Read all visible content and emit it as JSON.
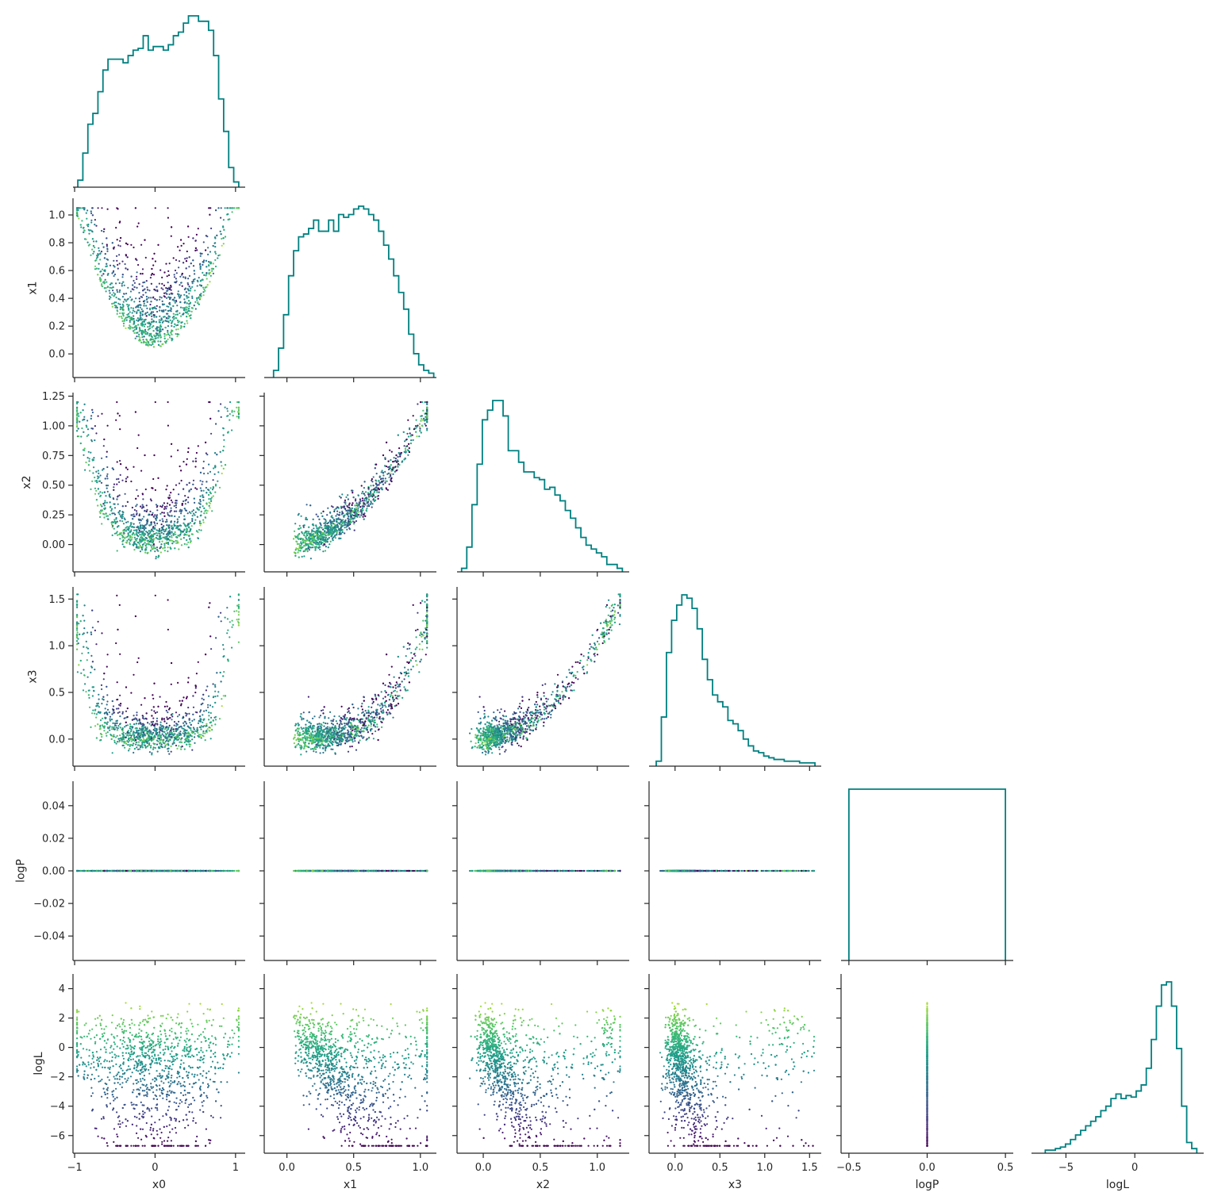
{
  "chart_data": {
    "type": "pairplot",
    "corner": true,
    "variables": [
      "x0",
      "x1",
      "x2",
      "x3",
      "logP",
      "logL"
    ],
    "axes": {
      "x0": {
        "label": "x0",
        "range": [
          -1.02,
          1.12
        ],
        "ticks": [
          -1,
          0,
          1
        ],
        "tick_labels": [
          "−1",
          "0",
          "1"
        ]
      },
      "x1": {
        "label": "x1",
        "range": [
          -0.17,
          1.12
        ],
        "ticks": [
          0.0,
          0.5,
          1.0
        ],
        "tick_labels": [
          "0.0",
          "0.5",
          "1.0"
        ],
        "y_ticks": [
          0.0,
          0.2,
          0.4,
          0.6,
          0.8,
          1.0
        ],
        "y_tick_labels": [
          "0.0",
          "0.2",
          "0.4",
          "0.6",
          "0.8",
          "1.0"
        ]
      },
      "x2": {
        "label": "x2",
        "range": [
          -0.23,
          1.28
        ],
        "ticks": [
          0.0,
          0.5,
          1.0
        ],
        "tick_labels": [
          "0.0",
          "0.5",
          "1.0"
        ],
        "y_ticks": [
          0.0,
          0.25,
          0.5,
          0.75,
          1.0,
          1.25
        ],
        "y_tick_labels": [
          "0.00",
          "0.25",
          "0.50",
          "0.75",
          "1.00",
          "1.25"
        ]
      },
      "x3": {
        "label": "x3",
        "range": [
          -0.29,
          1.63
        ],
        "ticks": [
          0.0,
          0.5,
          1.0,
          1.5
        ],
        "tick_labels": [
          "0.0",
          "0.5",
          "1.0",
          "1.5"
        ],
        "y_ticks": [
          0.0,
          0.5,
          1.0,
          1.5
        ],
        "y_tick_labels": [
          "0.0",
          "0.5",
          "1.0",
          "1.5"
        ]
      },
      "logP": {
        "label": "logP",
        "range": [
          -0.055,
          0.055
        ],
        "ticks": [
          -0.5,
          0.0,
          0.5
        ],
        "tick_labels": [
          "−0.5",
          "0.0",
          "0.5"
        ],
        "x_range": [
          -0.55,
          0.55
        ],
        "y_ticks": [
          -0.04,
          -0.02,
          0.0,
          0.02,
          0.04
        ],
        "y_tick_labels": [
          "−0.04",
          "−0.02",
          "0.00",
          "0.02",
          "0.04"
        ]
      },
      "logL": {
        "label": "logL",
        "range": [
          -7.2,
          5.0
        ],
        "ticks": [
          -5,
          0
        ],
        "tick_labels": [
          "−5",
          "0"
        ],
        "x_range": [
          -7.5,
          5.0
        ],
        "y_ticks": [
          -6,
          -4,
          -2,
          0,
          2,
          4
        ],
        "y_tick_labels": [
          "−6",
          "−4",
          "−2",
          "0",
          "2",
          "4"
        ]
      }
    },
    "histograms": {
      "x0": {
        "edges_range": [
          -0.96,
          1.04
        ],
        "counts": [
          3,
          18,
          34,
          40,
          52,
          64,
          70,
          70,
          70,
          68,
          72,
          75,
          76,
          83,
          75,
          77,
          77,
          75,
          78,
          83,
          85,
          90,
          94,
          94,
          91,
          91,
          86,
          72,
          48,
          30,
          10,
          2
        ]
      },
      "x1": {
        "edges_range": [
          -0.1,
          1.1
        ],
        "counts": [
          2,
          10,
          22,
          36,
          45,
          50,
          51,
          53,
          56,
          52,
          52,
          56,
          52,
          58,
          57,
          58,
          60,
          61,
          60,
          58,
          56,
          52,
          47,
          42,
          36,
          30,
          24,
          15,
          8,
          4,
          2,
          1
        ]
      },
      "x2": {
        "edges_range": [
          -0.19,
          1.22
        ],
        "counts": [
          1,
          12,
          34,
          55,
          78,
          83,
          88,
          88,
          80,
          62,
          62,
          56,
          51,
          51,
          48,
          47,
          42,
          43,
          39,
          36,
          31,
          27,
          22,
          17,
          13,
          11,
          9,
          7,
          3,
          3,
          1
        ]
      },
      "x3": {
        "edges_range": [
          -0.21,
          1.56
        ],
        "counts": [
          2,
          28,
          66,
          85,
          94,
          100,
          98,
          92,
          80,
          62,
          50,
          41,
          37,
          34,
          26,
          24,
          20,
          15,
          11,
          8,
          7,
          5,
          4,
          3,
          3,
          2,
          2,
          2,
          1,
          1,
          1
        ]
      },
      "logP": {
        "edges_range": [
          -0.5,
          0.5
        ],
        "counts": [
          1
        ]
      },
      "logL": {
        "edges_range": [
          -6.5,
          4.5
        ],
        "counts": [
          1,
          1,
          2,
          3,
          5,
          8,
          11,
          14,
          17,
          20,
          23,
          27,
          30,
          35,
          38,
          35,
          37,
          36,
          40,
          44,
          55,
          74,
          96,
          110,
          112,
          96,
          68,
          30,
          6,
          2
        ]
      }
    },
    "colormap": "viridis",
    "color_by": "logL",
    "hist_color": "#008080",
    "scatter_points_per_panel": 1400
  }
}
